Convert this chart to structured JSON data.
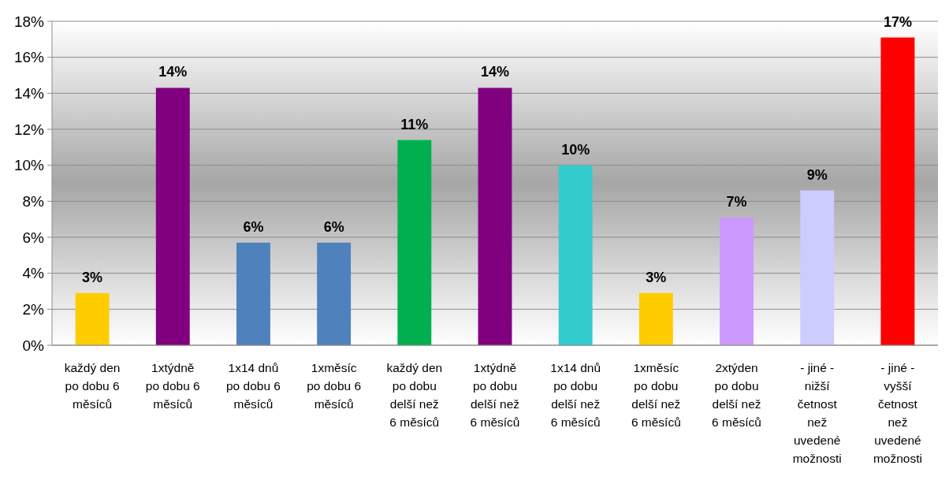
{
  "chart_data": {
    "type": "bar",
    "categories": [
      "každý den po dobu 6 měsíců",
      "1xtýdně po dobu 6 měsíců",
      "1x14 dnů po dobu 6 měsíců",
      "1xměsíc po dobu 6 měsíců",
      "každý den po dobu delší než 6 měsíců",
      "1xtýdně po dobu delší než 6 měsíců",
      "1x14 dnů po dobu delší než 6 měsíců",
      "1xměsíc po dobu delší než 6 měsíců",
      "2xtýden po dobu delší než 6 měsíců",
      "- jiné - nižší četnost než uvedené možnosti",
      "- jiné - vyšší četnost než uvedené možnosti"
    ],
    "values": [
      2.9,
      14.3,
      5.7,
      5.7,
      11.4,
      14.3,
      10,
      2.9,
      7.1,
      8.6,
      17.1
    ],
    "colors": [
      "#ffcc00",
      "#800080",
      "#4f81bd",
      "#4f81bd",
      "#00b050",
      "#800080",
      "#33cccc",
      "#ffcc00",
      "#cc99ff",
      "#ccccff",
      "#ff0000"
    ],
    "value_labels": [
      "3%",
      "14%",
      "6%",
      "6%",
      "11%",
      "14%",
      "10%",
      "3%",
      "7%",
      "9%",
      "17%"
    ],
    "ylim": [
      0,
      18
    ],
    "yticks": [
      {
        "value": 0,
        "label": "0%"
      },
      {
        "value": 2,
        "label": "2%"
      },
      {
        "value": 4,
        "label": "4%"
      },
      {
        "value": 6,
        "label": "6%"
      },
      {
        "value": 8,
        "label": "8%"
      },
      {
        "value": 10,
        "label": "10%"
      },
      {
        "value": 12,
        "label": "12%"
      },
      {
        "value": 14,
        "label": "14%"
      },
      {
        "value": 16,
        "label": "16%"
      },
      {
        "value": 18,
        "label": "18%"
      }
    ],
    "grid": "y"
  }
}
